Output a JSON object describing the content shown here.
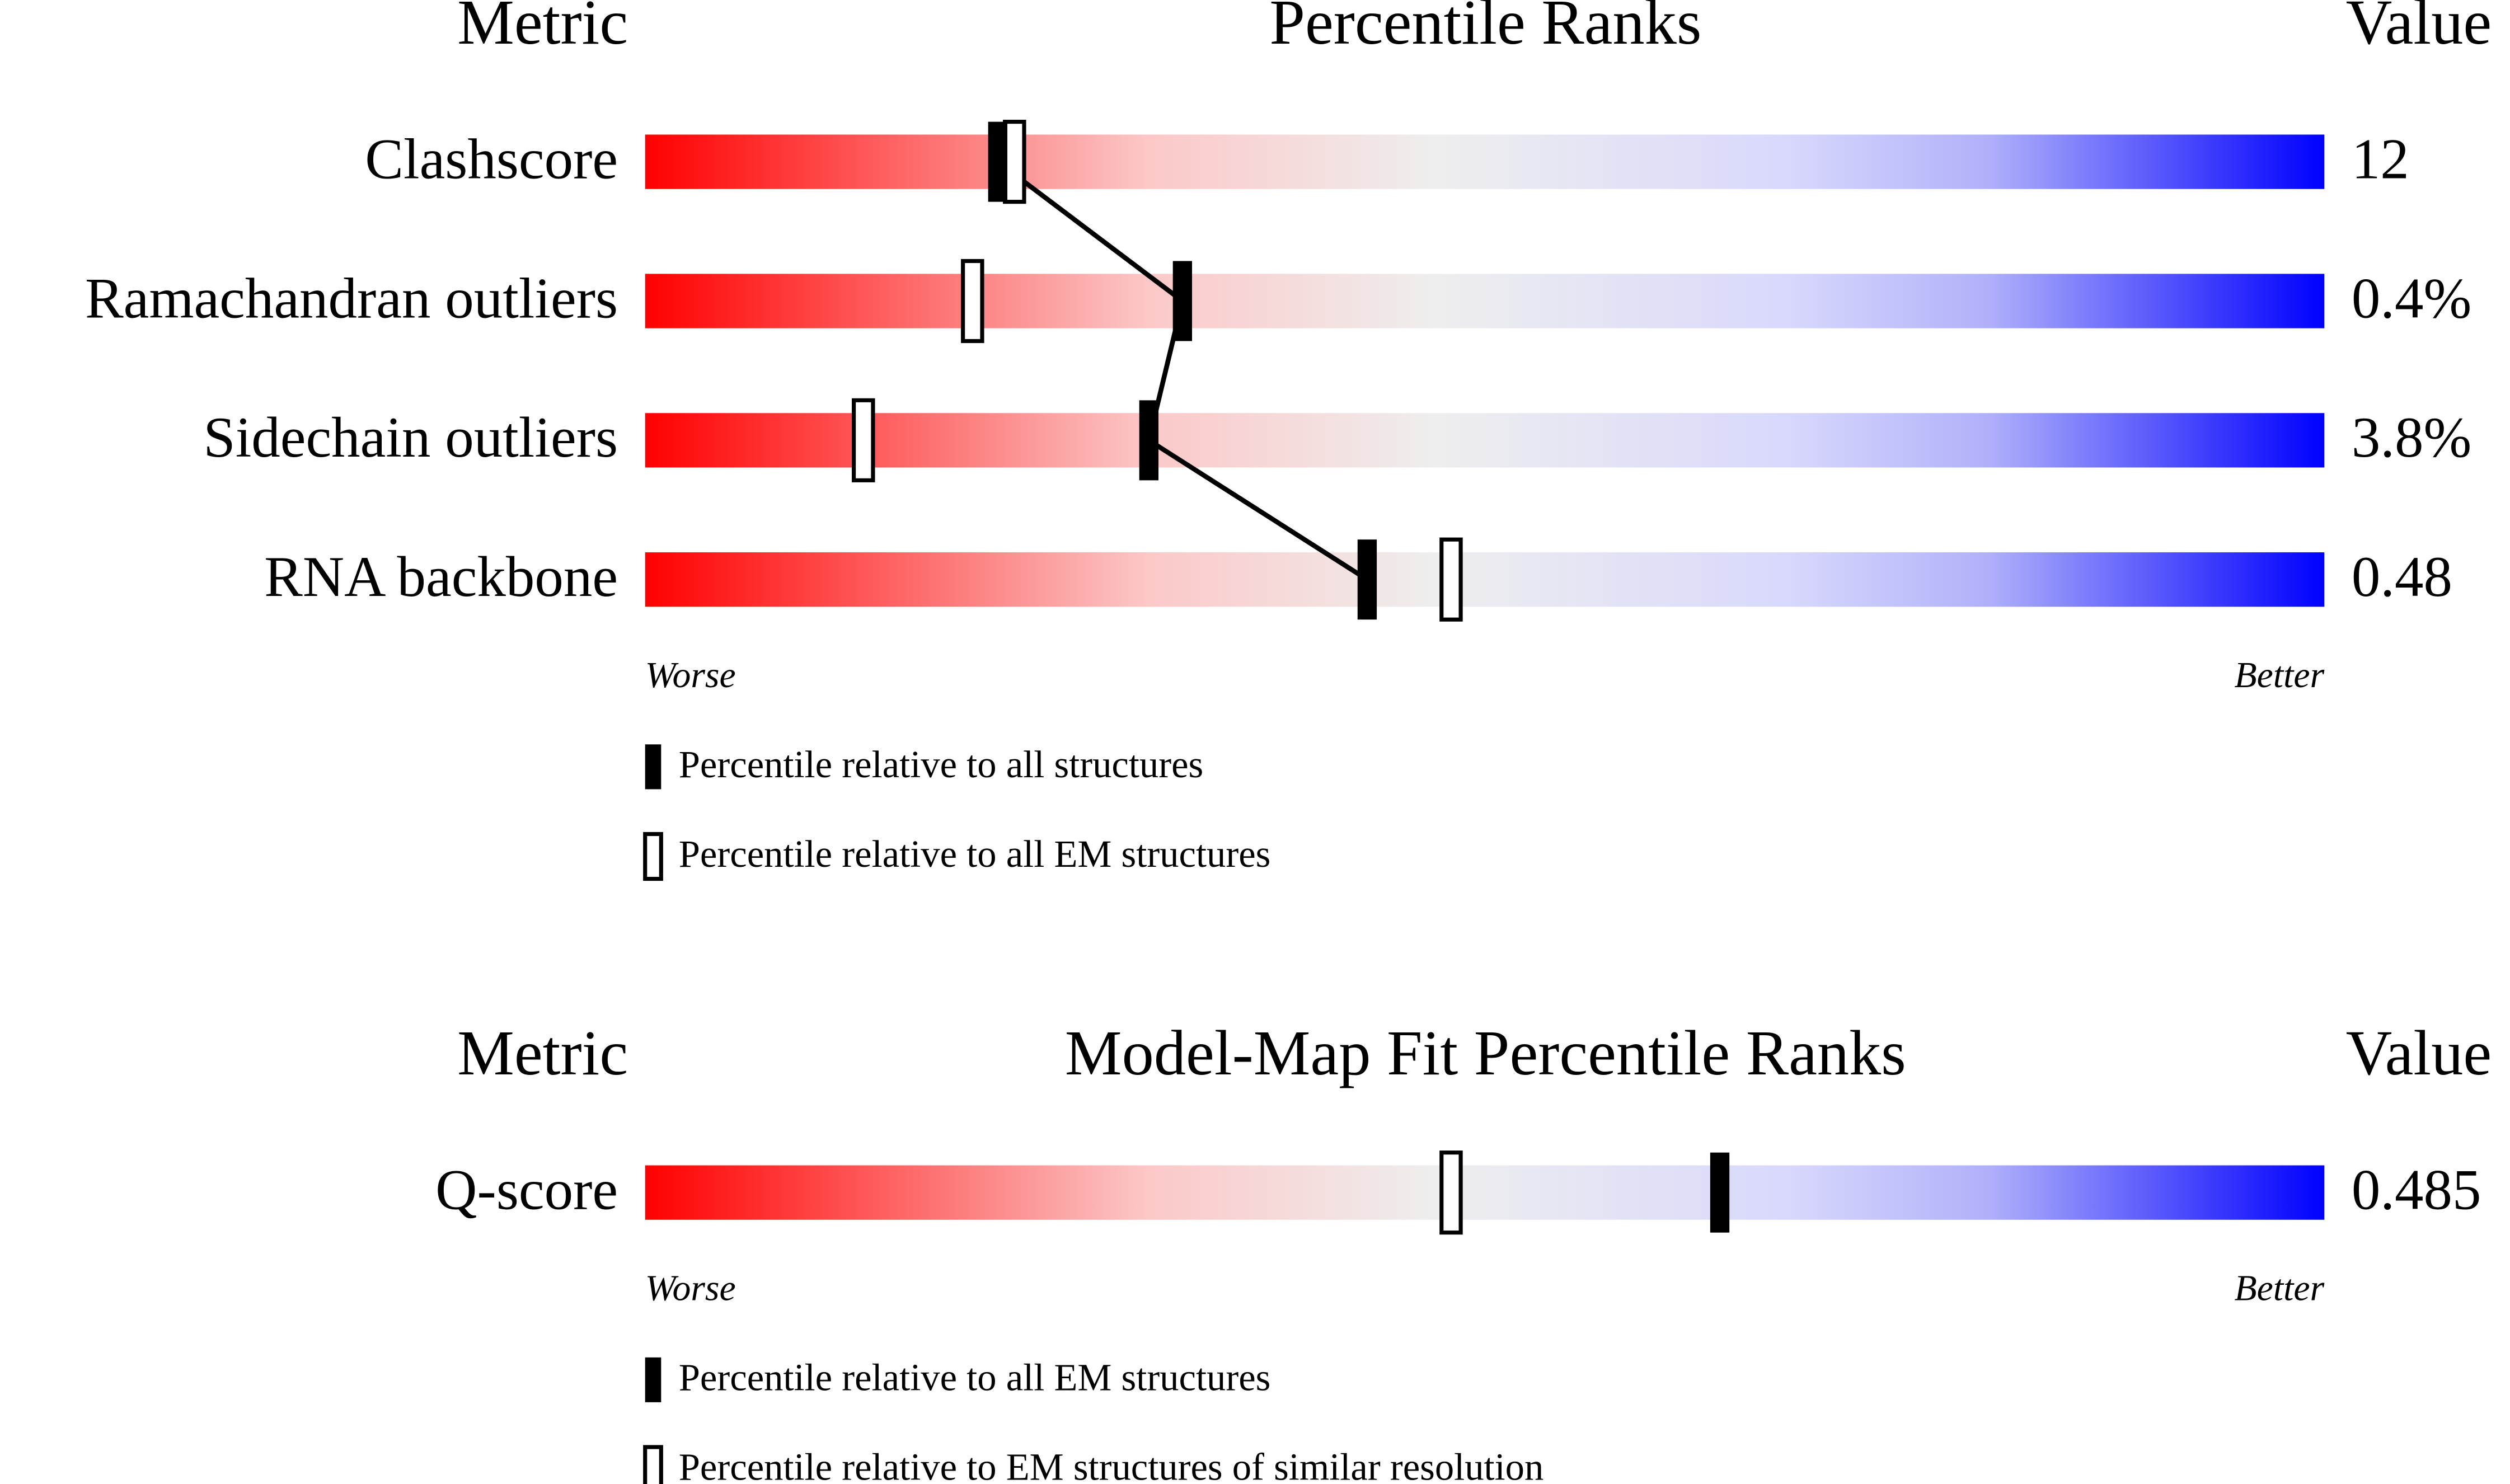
{
  "chart_data": [
    {
      "type": "slider",
      "metric_header": "Metric",
      "title": "Percentile Ranks",
      "value_header": "Value",
      "categories": [
        "Clashscore",
        "Ramachandran outliers",
        "Sidechain outliers",
        "RNA backbone"
      ],
      "metric_values": [
        "12",
        "0.4%",
        "3.8%",
        "0.48"
      ],
      "xlim": [
        0,
        100
      ],
      "worse_label": "Worse",
      "better_label": "Better",
      "connect": true,
      "series": [
        {
          "name": "Percentile relative to all structures",
          "marker": "filled",
          "color": "#000000",
          "values": [
            21,
            32,
            30,
            43
          ]
        },
        {
          "name": "Percentile relative to all EM structures",
          "marker": "open",
          "color": "#000000",
          "values": [
            22,
            19.5,
            13,
            48
          ]
        }
      ]
    },
    {
      "type": "slider",
      "metric_header": "Metric",
      "title": "Model-Map Fit Percentile Ranks",
      "value_header": "Value",
      "categories": [
        "Q-score"
      ],
      "metric_values": [
        "0.485"
      ],
      "xlim": [
        0,
        100
      ],
      "worse_label": "Worse",
      "better_label": "Better",
      "connect": false,
      "series": [
        {
          "name": "Percentile relative to all EM structures",
          "marker": "filled",
          "color": "#000000",
          "values": [
            64
          ]
        },
        {
          "name": "Percentile relative to EM structures of similar resolution",
          "marker": "open",
          "color": "#000000",
          "values": [
            48
          ]
        }
      ]
    }
  ]
}
